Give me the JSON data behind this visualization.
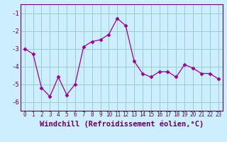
{
  "x": [
    0,
    1,
    2,
    3,
    4,
    5,
    6,
    7,
    8,
    9,
    10,
    11,
    12,
    13,
    14,
    15,
    16,
    17,
    18,
    19,
    20,
    21,
    22,
    23
  ],
  "y": [
    -3.0,
    -3.3,
    -5.2,
    -5.7,
    -4.6,
    -5.6,
    -5.0,
    -2.9,
    -2.6,
    -2.5,
    -2.2,
    -1.3,
    -1.7,
    -3.7,
    -4.4,
    -4.6,
    -4.3,
    -4.3,
    -4.6,
    -3.9,
    -4.1,
    -4.4,
    -4.4,
    -4.7
  ],
  "line_color": "#990099",
  "marker": "D",
  "marker_size": 2.5,
  "bg_color": "#cceeff",
  "grid_color": "#99cccc",
  "xlabel": "Windchill (Refroidissement éolien,°C)",
  "xlabel_fontsize": 7.5,
  "xlim": [
    -0.5,
    23.5
  ],
  "ylim": [
    -6.5,
    -0.5
  ],
  "yticks": [
    -6,
    -5,
    -4,
    -3,
    -2,
    -1
  ],
  "xtick_fontsize": 5.5,
  "ytick_fontsize": 6.5,
  "tick_color": "#660066",
  "spine_color": "#660066"
}
